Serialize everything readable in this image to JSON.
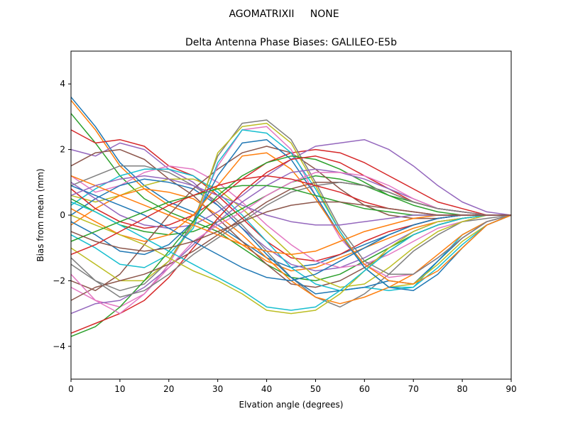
{
  "chart_data": {
    "type": "line",
    "suptitle": "AGOMATRIXII     NONE",
    "title": "Delta Antenna Phase Biases: GALILEO-E5b",
    "xlabel": "Elvation angle (degrees)",
    "ylabel": "Bias from mean (mm)",
    "xlim": [
      0,
      90
    ],
    "ylim": [
      -5,
      5
    ],
    "xticks": [
      0,
      10,
      20,
      30,
      40,
      50,
      60,
      70,
      80,
      90
    ],
    "yticks": [
      -4,
      -2,
      0,
      2,
      4
    ],
    "grid": false,
    "x": [
      0,
      5,
      10,
      15,
      20,
      25,
      30,
      35,
      40,
      45,
      50,
      55,
      60,
      65,
      70,
      75,
      80,
      85,
      90
    ],
    "colors": [
      "#1f77b4",
      "#ff7f0e",
      "#2ca02c",
      "#d62728",
      "#9467bd",
      "#8c564b",
      "#e377c2",
      "#7f7f7f",
      "#bcbd22",
      "#17becf"
    ],
    "series": [
      {
        "values": [
          3.6,
          2.7,
          1.6,
          0.9,
          0.4,
          0.1,
          -0.3,
          -0.8,
          -1.3,
          -1.6,
          -1.5,
          -1.2,
          -0.9,
          -0.6,
          -0.3,
          -0.1,
          0.0,
          0.0,
          0.0
        ]
      },
      {
        "values": [
          3.5,
          2.6,
          1.5,
          0.8,
          0.3,
          0.0,
          -0.4,
          -0.9,
          -1.4,
          -1.7,
          -1.6,
          -1.3,
          -1.0,
          -0.7,
          -0.4,
          -0.2,
          -0.1,
          0.0,
          0.0
        ]
      },
      {
        "values": [
          3.1,
          2.2,
          1.2,
          0.5,
          0.1,
          -0.2,
          -0.5,
          -1.0,
          -1.5,
          -1.9,
          -2.0,
          -1.8,
          -1.4,
          -1.0,
          -0.6,
          -0.3,
          -0.1,
          0.0,
          0.0
        ]
      },
      {
        "values": [
          2.6,
          2.2,
          2.3,
          2.1,
          1.5,
          1.2,
          0.6,
          -0.1,
          -0.8,
          -1.3,
          -1.4,
          -1.2,
          -0.8,
          -0.5,
          -0.3,
          -0.1,
          0.0,
          0.0,
          0.0
        ]
      },
      {
        "values": [
          2.0,
          1.8,
          2.2,
          2.0,
          1.4,
          1.0,
          0.3,
          -0.4,
          -1.0,
          -1.5,
          -1.7,
          -1.6,
          -1.3,
          -0.9,
          -0.5,
          -0.2,
          -0.1,
          0.0,
          0.0
        ]
      },
      {
        "values": [
          1.5,
          1.9,
          2.0,
          1.7,
          1.1,
          0.6,
          -0.1,
          -0.8,
          -1.5,
          -2.1,
          -2.2,
          -2.0,
          -1.6,
          -1.1,
          -0.6,
          -0.3,
          -0.1,
          0.0,
          0.0
        ]
      },
      {
        "values": [
          1.2,
          0.7,
          0.9,
          1.3,
          1.5,
          1.4,
          1.0,
          0.4,
          -0.3,
          -0.9,
          -1.4,
          -1.6,
          -1.5,
          -1.2,
          -0.8,
          -0.4,
          -0.2,
          0.0,
          0.0
        ]
      },
      {
        "values": [
          0.9,
          1.2,
          1.5,
          1.5,
          1.3,
          0.9,
          0.4,
          -0.3,
          -1.1,
          -1.9,
          -2.5,
          -2.8,
          -2.4,
          -1.8,
          -1.1,
          -0.6,
          -0.2,
          -0.1,
          0.0
        ]
      },
      {
        "values": [
          0.6,
          0.4,
          0.6,
          0.9,
          1.1,
          1.1,
          0.8,
          0.2,
          -0.5,
          -1.2,
          -1.9,
          -2.2,
          -2.1,
          -1.6,
          -1.0,
          -0.5,
          -0.2,
          0.0,
          0.0
        ]
      },
      {
        "values": [
          0.3,
          0.8,
          1.2,
          1.4,
          1.4,
          1.2,
          0.7,
          0.0,
          -0.8,
          -1.6,
          -2.1,
          -2.3,
          -2.2,
          -2.3,
          -2.2,
          -1.4,
          -0.6,
          -0.2,
          0.0
        ]
      },
      {
        "values": [
          0.0,
          0.5,
          0.9,
          1.1,
          1.0,
          0.8,
          0.3,
          -0.4,
          -1.2,
          -1.9,
          -2.4,
          -2.3,
          -2.2,
          -2.0,
          -2.1,
          -1.4,
          -0.7,
          -0.2,
          0.0
        ]
      },
      {
        "values": [
          -0.3,
          0.2,
          0.6,
          0.8,
          0.7,
          0.5,
          0.0,
          -0.6,
          -1.3,
          -2.0,
          -2.5,
          -2.7,
          -2.5,
          -2.2,
          -1.8,
          -1.2,
          -0.6,
          -0.2,
          0.0
        ]
      },
      {
        "values": [
          0.5,
          0.1,
          -0.3,
          -0.5,
          -0.6,
          -0.5,
          -0.2,
          0.2,
          0.6,
          1.0,
          1.2,
          1.1,
          0.9,
          0.6,
          0.4,
          0.2,
          0.1,
          0.0,
          0.0
        ]
      },
      {
        "values": [
          0.8,
          0.2,
          -0.2,
          -0.4,
          -0.3,
          0.0,
          0.5,
          1.1,
          1.6,
          1.9,
          2.0,
          1.9,
          1.6,
          1.2,
          0.8,
          0.4,
          0.2,
          0.0,
          0.0
        ]
      },
      {
        "values": [
          1.0,
          0.5,
          0.0,
          -0.3,
          -0.4,
          -0.3,
          0.1,
          0.6,
          1.2,
          1.7,
          2.1,
          2.2,
          2.3,
          2.0,
          1.5,
          0.9,
          0.4,
          0.1,
          0.0
        ]
      },
      {
        "values": [
          -2.0,
          -2.3,
          -1.8,
          -0.9,
          0.0,
          0.8,
          1.4,
          1.9,
          2.1,
          1.9,
          1.4,
          0.8,
          0.3,
          0.0,
          -0.1,
          -0.1,
          0.0,
          0.0,
          0.0
        ]
      },
      {
        "values": [
          -2.2,
          -2.6,
          -2.8,
          -2.4,
          -1.5,
          -0.2,
          1.5,
          2.6,
          2.7,
          2.0,
          0.6,
          -0.7,
          -1.5,
          -1.9,
          -1.8,
          -1.3,
          -0.7,
          -0.2,
          0.0
        ]
      },
      {
        "values": [
          -1.5,
          -2.0,
          -2.3,
          -2.1,
          -1.4,
          -0.2,
          1.8,
          2.8,
          2.9,
          2.3,
          1.0,
          -0.4,
          -1.4,
          -1.8,
          -1.8,
          -1.3,
          -0.7,
          -0.2,
          0.0
        ]
      },
      {
        "values": [
          -1.0,
          -1.5,
          -2.0,
          -2.0,
          -1.4,
          -0.3,
          1.9,
          2.7,
          2.8,
          2.2,
          0.9,
          -0.5,
          -1.6,
          -2.2,
          -2.1,
          -1.5,
          -0.8,
          -0.3,
          0.0
        ]
      },
      {
        "values": [
          -0.6,
          -1.0,
          -1.5,
          -1.6,
          -1.2,
          -0.4,
          1.6,
          2.6,
          2.5,
          1.9,
          0.8,
          -0.5,
          -1.6,
          -2.2,
          -2.2,
          -1.6,
          -0.9,
          -0.3,
          0.0
        ]
      },
      {
        "values": [
          -0.2,
          -0.6,
          -1.1,
          -1.2,
          -0.9,
          -0.2,
          1.2,
          2.2,
          2.3,
          1.7,
          0.6,
          -0.6,
          -1.6,
          -2.2,
          -2.3,
          -1.8,
          -1.0,
          -0.3,
          0.0
        ]
      },
      {
        "values": [
          0.2,
          -0.2,
          -0.6,
          -0.8,
          -0.6,
          0.0,
          0.9,
          1.8,
          1.9,
          1.4,
          0.5,
          -0.6,
          -1.5,
          -2.0,
          -2.1,
          -1.7,
          -1.0,
          -0.3,
          0.0
        ]
      },
      {
        "values": [
          -3.7,
          -3.4,
          -2.8,
          -2.0,
          -1.1,
          -0.2,
          0.6,
          1.2,
          1.6,
          1.8,
          1.7,
          1.4,
          1.0,
          0.6,
          0.3,
          0.1,
          0.0,
          0.0,
          0.0
        ]
      },
      {
        "values": [
          -3.6,
          -3.3,
          -3.0,
          -2.6,
          -1.9,
          -1.0,
          -0.1,
          0.7,
          1.3,
          1.7,
          1.8,
          1.6,
          1.2,
          0.8,
          0.4,
          0.2,
          0.1,
          0.0,
          0.0
        ]
      },
      {
        "values": [
          -3.0,
          -2.7,
          -2.6,
          -2.2,
          -1.6,
          -0.9,
          -0.2,
          0.4,
          0.9,
          1.3,
          1.4,
          1.3,
          1.1,
          0.8,
          0.5,
          0.2,
          0.1,
          0.0,
          0.0
        ]
      },
      {
        "values": [
          -2.6,
          -2.2,
          -2.0,
          -1.8,
          -1.5,
          -1.1,
          -0.6,
          -0.1,
          0.4,
          0.8,
          1.0,
          1.0,
          0.9,
          0.7,
          0.4,
          0.2,
          0.1,
          0.0,
          0.0
        ]
      },
      {
        "values": [
          -1.8,
          -2.6,
          -3.0,
          -2.4,
          -1.6,
          -0.8,
          -0.3,
          0.1,
          0.6,
          1.0,
          1.3,
          1.3,
          1.2,
          0.9,
          0.5,
          0.2,
          0.1,
          0.0,
          0.0
        ]
      },
      {
        "values": [
          -1.3,
          -2.0,
          -2.5,
          -2.3,
          -1.8,
          -1.2,
          -0.7,
          -0.2,
          0.3,
          0.7,
          0.9,
          1.0,
          0.9,
          0.7,
          0.4,
          0.2,
          0.1,
          0.0,
          0.0
        ]
      },
      {
        "values": [
          0.0,
          -0.3,
          -0.6,
          -0.9,
          -1.3,
          -1.7,
          -2.0,
          -2.4,
          -2.9,
          -3.0,
          -2.9,
          -2.4,
          -1.7,
          -1.0,
          -0.5,
          -0.2,
          -0.1,
          0.0,
          0.0
        ]
      },
      {
        "values": [
          0.4,
          0.1,
          -0.3,
          -0.7,
          -1.1,
          -1.5,
          -1.9,
          -2.3,
          -2.8,
          -2.9,
          -2.8,
          -2.3,
          -1.7,
          -1.1,
          -0.6,
          -0.3,
          -0.1,
          0.0,
          0.0
        ]
      },
      {
        "values": [
          0.9,
          0.6,
          0.3,
          0.0,
          -0.4,
          -0.8,
          -1.2,
          -1.6,
          -1.9,
          -2.0,
          -1.8,
          -1.4,
          -1.0,
          -0.6,
          -0.3,
          -0.1,
          0.0,
          0.0,
          0.0
        ]
      },
      {
        "values": [
          1.2,
          0.9,
          0.6,
          0.3,
          0.0,
          -0.3,
          -0.6,
          -0.9,
          -1.1,
          -1.2,
          -1.1,
          -0.8,
          -0.5,
          -0.3,
          -0.1,
          0.0,
          0.0,
          0.0,
          0.0
        ]
      },
      {
        "values": [
          -0.8,
          -0.5,
          -0.2,
          0.1,
          0.4,
          0.6,
          0.8,
          0.9,
          0.9,
          0.8,
          0.6,
          0.4,
          0.2,
          0.1,
          0.0,
          0.0,
          0.0,
          0.0,
          0.0
        ]
      },
      {
        "values": [
          -1.2,
          -0.9,
          -0.5,
          -0.1,
          0.3,
          0.6,
          0.9,
          1.1,
          1.2,
          1.1,
          0.9,
          0.7,
          0.4,
          0.2,
          0.1,
          0.0,
          0.0,
          0.0,
          0.0
        ]
      },
      {
        "values": [
          0.6,
          0.9,
          1.1,
          1.2,
          1.1,
          0.9,
          0.6,
          0.3,
          0.0,
          -0.2,
          -0.3,
          -0.3,
          -0.2,
          -0.1,
          0.0,
          0.0,
          0.0,
          0.0,
          0.0
        ]
      },
      {
        "values": [
          -0.5,
          -0.8,
          -1.0,
          -1.1,
          -1.0,
          -0.8,
          -0.5,
          -0.2,
          0.1,
          0.3,
          0.4,
          0.4,
          0.3,
          0.2,
          0.1,
          0.0,
          0.0,
          0.0,
          0.0
        ]
      }
    ]
  }
}
